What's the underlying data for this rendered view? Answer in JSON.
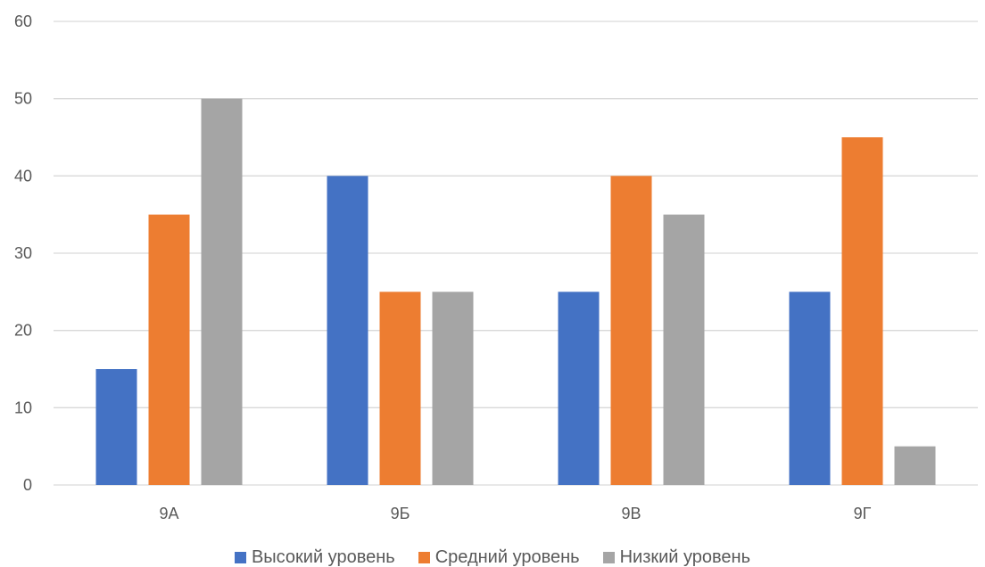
{
  "chart_data": {
    "type": "bar",
    "categories": [
      "9А",
      "9Б",
      "9В",
      "9Г"
    ],
    "series": [
      {
        "name": "Высокий уровень",
        "values": [
          15,
          40,
          25,
          25
        ],
        "color": "#4472C4"
      },
      {
        "name": "Средний уровень",
        "values": [
          35,
          25,
          40,
          45
        ],
        "color": "#ED7D31"
      },
      {
        "name": "Низкий уровень",
        "values": [
          50,
          25,
          35,
          5
        ],
        "color": "#A5A5A5"
      }
    ],
    "yticks": [
      "0",
      "10",
      "20",
      "30",
      "40",
      "50",
      "60"
    ],
    "ylim": [
      0,
      60
    ],
    "grid": true,
    "legend_position": "bottom",
    "title": "",
    "xlabel": "",
    "ylabel": "",
    "gridline_color": "#D9D9D9"
  }
}
